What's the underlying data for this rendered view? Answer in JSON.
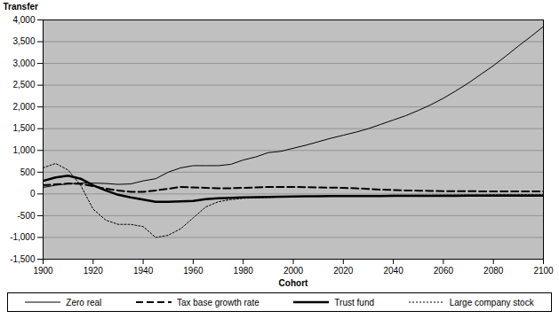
{
  "chart_data": {
    "type": "line",
    "x_label": "Cohort",
    "y_label": "Transfer",
    "x": [
      1900,
      1905,
      1910,
      1915,
      1920,
      1925,
      1930,
      1935,
      1940,
      1945,
      1950,
      1955,
      1960,
      1965,
      1970,
      1975,
      1980,
      1985,
      1990,
      1995,
      2000,
      2005,
      2010,
      2015,
      2020,
      2025,
      2030,
      2035,
      2040,
      2045,
      2050,
      2055,
      2060,
      2065,
      2070,
      2075,
      2080,
      2085,
      2090,
      2095,
      2100
    ],
    "series": [
      {
        "name": "Zero real",
        "color": "#000000",
        "line_style": "solid",
        "values": [
          150,
          200,
          230,
          250,
          250,
          240,
          220,
          230,
          300,
          350,
          500,
          600,
          650,
          650,
          650,
          680,
          780,
          850,
          950,
          980,
          1050,
          1120,
          1200,
          1280,
          1350,
          1420,
          1500,
          1600,
          1700,
          1800,
          1920,
          2050,
          2200,
          2370,
          2550,
          2750,
          2950,
          3170,
          3400,
          3620,
          3850
        ]
      },
      {
        "name": "Tax base growth rate",
        "color": "#000000",
        "line_style": "dashed",
        "values": [
          200,
          220,
          240,
          230,
          180,
          120,
          80,
          50,
          50,
          80,
          120,
          160,
          150,
          140,
          130,
          130,
          140,
          150,
          160,
          160,
          160,
          155,
          150,
          145,
          140,
          130,
          115,
          100,
          90,
          80,
          75,
          70,
          65,
          65,
          65,
          60,
          60,
          60,
          60,
          60,
          60
        ]
      },
      {
        "name": "Trust fund",
        "color": "#000000",
        "line_style": "thick",
        "values": [
          300,
          380,
          420,
          350,
          200,
          80,
          -20,
          -80,
          -130,
          -180,
          -180,
          -170,
          -160,
          -120,
          -100,
          -90,
          -80,
          -75,
          -70,
          -65,
          -60,
          -55,
          -55,
          -50,
          -50,
          -50,
          -50,
          -50,
          -45,
          -45,
          -45,
          -45,
          -45,
          -45,
          -40,
          -40,
          -40,
          -40,
          -40,
          -40,
          -40
        ]
      },
      {
        "name": "Large company stock",
        "color": "#000000",
        "line_style": "dotted",
        "values": [
          600,
          700,
          550,
          200,
          -350,
          -600,
          -700,
          -700,
          -750,
          -1000,
          -950,
          -800,
          -550,
          -300,
          -180,
          -130,
          -100,
          -90,
          -80,
          -70,
          -60,
          -55,
          -50,
          -45,
          -40,
          -40,
          -35,
          -35,
          -30,
          -30,
          -30,
          -30,
          -25,
          -25,
          -25,
          -25,
          -20,
          -20,
          -20,
          -20,
          -20
        ]
      }
    ],
    "xlim": [
      1900,
      2100
    ],
    "xticks": [
      1900,
      1920,
      1940,
      1960,
      1980,
      2000,
      2020,
      2040,
      2060,
      2080,
      2100
    ],
    "ylim": [
      -1500,
      4000
    ],
    "yticks": [
      {
        "value": -1500,
        "label": "-1,500"
      },
      {
        "value": -1000,
        "label": "-1,000"
      },
      {
        "value": -500,
        "label": "-500"
      },
      0,
      500,
      {
        "value": 1000,
        "label": "1,000"
      },
      {
        "value": 1500,
        "label": "1,500"
      },
      {
        "value": 2000,
        "label": "2,000"
      },
      {
        "value": 2500,
        "label": "2,500"
      },
      {
        "value": 3000,
        "label": "3,000"
      },
      {
        "value": 3500,
        "label": "3,500"
      },
      {
        "value": 4000,
        "label": "4,000"
      }
    ],
    "grid": true,
    "legend": "bottom"
  }
}
